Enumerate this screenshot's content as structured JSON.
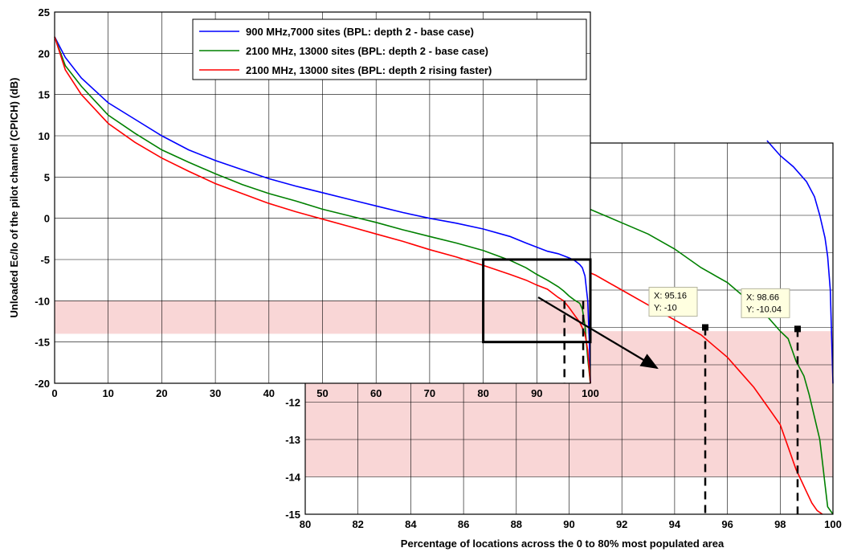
{
  "chart_data": [
    {
      "id": "main",
      "type": "line",
      "ylabel": "Unloaded Ec/Io of the pilot channel (CPICH) (dB)",
      "xlim": [
        0,
        100
      ],
      "ylim": [
        -20,
        25
      ],
      "xticks": [
        "0",
        "10",
        "20",
        "30",
        "40",
        "50",
        "60",
        "70",
        "80",
        "90",
        "100"
      ],
      "yticks": [
        "25",
        "20",
        "15",
        "10",
        "5",
        "0",
        "-5",
        "-10",
        "-15",
        "-20"
      ],
      "grid": true,
      "legend_position": "top-right",
      "shaded_band": {
        "y_from": -14,
        "y_to": -10,
        "color": "#f9d6d6"
      },
      "zoom_box": {
        "x": [
          80,
          100
        ],
        "y": [
          -15,
          -5
        ]
      },
      "dashed_markers": [
        {
          "x": 95.16,
          "y_from": -20,
          "y_to": -10
        },
        {
          "x": 98.66,
          "y_from": -20,
          "y_to": -10.04
        }
      ],
      "series": [
        {
          "name": "900 MHz,7000 sites (BPL: depth 2 - base case)",
          "color": "#0000ff",
          "x": [
            0,
            2,
            5,
            10,
            15,
            20,
            25,
            30,
            35,
            40,
            45,
            50,
            55,
            60,
            65,
            70,
            75,
            80,
            85,
            88,
            90,
            92,
            94,
            96,
            97,
            98,
            98.5,
            99,
            99.5,
            99.8,
            100
          ],
          "y": [
            22,
            19.5,
            17,
            14,
            12,
            10,
            8.3,
            7,
            5.9,
            4.8,
            3.9,
            3.1,
            2.3,
            1.5,
            0.7,
            0,
            -0.6,
            -1.3,
            -2.2,
            -3,
            -3.5,
            -4,
            -4.3,
            -4.8,
            -5.1,
            -5.6,
            -6,
            -7,
            -10,
            -15,
            -20
          ]
        },
        {
          "name": "2100 MHz, 13000 sites (BPL: depth 2 - base case)",
          "color": "#008000",
          "x": [
            0,
            2,
            5,
            10,
            15,
            20,
            25,
            30,
            35,
            40,
            45,
            50,
            55,
            60,
            65,
            70,
            75,
            80,
            85,
            88,
            90,
            92,
            94,
            95,
            96,
            97,
            98,
            98.5,
            99,
            99.5,
            100
          ],
          "y": [
            22,
            18.5,
            16,
            12.5,
            10.3,
            8.3,
            6.8,
            5.4,
            4.1,
            3,
            2.1,
            1.1,
            0.3,
            -0.5,
            -1.4,
            -2.2,
            -3,
            -3.9,
            -5.1,
            -6,
            -6.8,
            -7.5,
            -8.3,
            -8.8,
            -9.4,
            -9.9,
            -10.3,
            -11,
            -13,
            -17,
            -20
          ]
        },
        {
          "name": "2100 MHz, 13000 sites (BPL: depth 2 rising faster)",
          "color": "#ff0000",
          "x": [
            0,
            2,
            5,
            10,
            15,
            20,
            25,
            30,
            35,
            40,
            45,
            50,
            55,
            60,
            65,
            70,
            75,
            80,
            85,
            88,
            90,
            92,
            93,
            94,
            95,
            96,
            97,
            98,
            99,
            99.5,
            100
          ],
          "y": [
            22,
            18,
            15,
            11.5,
            9.2,
            7.3,
            5.7,
            4.2,
            3,
            1.8,
            0.8,
            -0.1,
            -1,
            -1.9,
            -2.8,
            -3.8,
            -4.7,
            -5.7,
            -6.8,
            -7.5,
            -8.1,
            -8.6,
            -9.1,
            -9.6,
            -10,
            -10.8,
            -11.7,
            -12.6,
            -14,
            -16,
            -20
          ]
        }
      ]
    },
    {
      "id": "zoom",
      "type": "line",
      "xlabel": "Percentage of locations across the 0 to 80% most populated area",
      "xlim": [
        80,
        100
      ],
      "ylim": [
        -15,
        -5
      ],
      "xticks": [
        "80",
        "82",
        "84",
        "86",
        "88",
        "90",
        "92",
        "94",
        "96",
        "98",
        "100"
      ],
      "yticks": [
        "-12",
        "-13",
        "-14",
        "-15"
      ],
      "grid": true,
      "shaded_band": {
        "y_from": -14,
        "y_to": -10.1,
        "color": "#f9d6d6"
      },
      "datatips": [
        {
          "x": 95.16,
          "y": -10,
          "x_label": "X: 95.16",
          "y_label": "Y: -10"
        },
        {
          "x": 98.66,
          "y": -10.04,
          "x_label": "X: 98.66",
          "y_label": "Y: -10.04"
        }
      ],
      "series": [
        {
          "name": "",
          "color": "#0000ff",
          "x": [
            97.5,
            98,
            98.5,
            99,
            99.3,
            99.5,
            99.7,
            99.8,
            99.9,
            100
          ],
          "y": [
            -5,
            -5.4,
            -5.7,
            -6.1,
            -6.5,
            -7,
            -7.6,
            -8.1,
            -9,
            -11.5
          ]
        },
        {
          "name": "",
          "color": "#008000",
          "x": [
            84,
            85,
            86,
            87,
            88,
            89,
            90,
            91,
            92,
            93,
            94,
            95,
            96,
            97,
            97.5,
            98,
            98.3,
            98.6,
            98.9,
            99.1,
            99.3,
            99.5,
            99.6,
            99.7,
            99.8,
            100
          ],
          "y": [
            -5.3,
            -5.6,
            -5.8,
            -6.1,
            -6.3,
            -6.5,
            -6.6,
            -6.9,
            -7.2,
            -7.5,
            -7.9,
            -8.4,
            -8.8,
            -9.4,
            -9.7,
            -10.1,
            -10.3,
            -10.9,
            -11.3,
            -11.8,
            -12.4,
            -13,
            -13.6,
            -14.2,
            -14.8,
            -15
          ]
        },
        {
          "name": "",
          "color": "#ff0000",
          "x": [
            80,
            82,
            84,
            86,
            88,
            90,
            91,
            92,
            93,
            94,
            95,
            95.5,
            96,
            96.5,
            97,
            97.5,
            98,
            98.3,
            98.6,
            98.8,
            99,
            99.2,
            99.4,
            99.6
          ],
          "y": [
            -6,
            -6.4,
            -6.8,
            -7.2,
            -7.8,
            -8.3,
            -8.6,
            -9,
            -9.4,
            -9.8,
            -10.2,
            -10.5,
            -10.8,
            -11.2,
            -11.6,
            -12.1,
            -12.6,
            -13.2,
            -13.8,
            -14.1,
            -14.4,
            -14.7,
            -14.9,
            -15
          ]
        }
      ]
    }
  ]
}
